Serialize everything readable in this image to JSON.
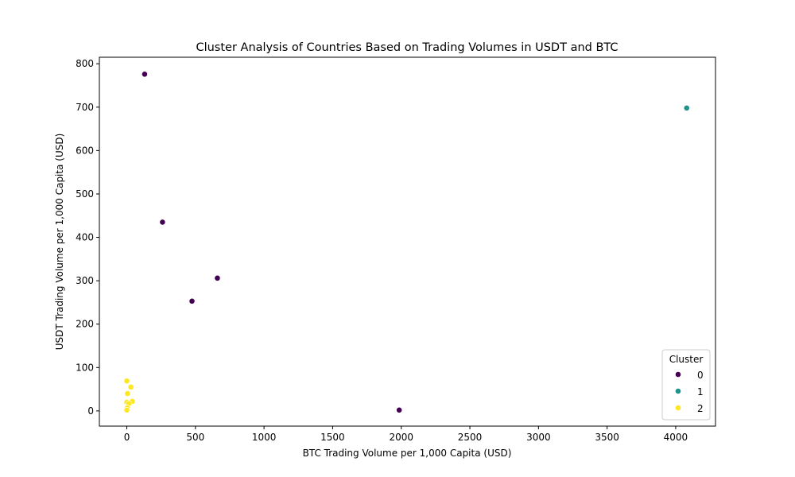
{
  "chart_data": {
    "type": "scatter",
    "title": "Cluster Analysis of Countries Based on Trading Volumes in USDT and BTC",
    "xlabel": "BTC Trading Volume per 1,000 Capita (USD)",
    "ylabel": "USDT Trading Volume per 1,000 Capita (USD)",
    "xlim": [
      -200,
      4290
    ],
    "ylim": [
      -35,
      815
    ],
    "xticks": [
      0,
      500,
      1000,
      1500,
      2000,
      2500,
      3000,
      3500,
      4000
    ],
    "yticks": [
      0,
      100,
      200,
      300,
      400,
      500,
      600,
      700,
      800
    ],
    "grid": false,
    "legend": {
      "title": "Cluster",
      "placement": "lower-right",
      "entries": [
        {
          "label": "0",
          "color": "#440154"
        },
        {
          "label": "1",
          "color": "#21918c"
        },
        {
          "label": "2",
          "color": "#fde725"
        }
      ]
    },
    "series": [
      {
        "name": "0",
        "color": "#440154",
        "points": [
          {
            "x": 130,
            "y": 776
          },
          {
            "x": 260,
            "y": 435
          },
          {
            "x": 660,
            "y": 306
          },
          {
            "x": 475,
            "y": 253
          },
          {
            "x": 1985,
            "y": 2
          }
        ]
      },
      {
        "name": "1",
        "color": "#21918c",
        "points": [
          {
            "x": 4080,
            "y": 698
          }
        ]
      },
      {
        "name": "2",
        "color": "#fde725",
        "points": [
          {
            "x": 0,
            "y": 69
          },
          {
            "x": 30,
            "y": 55
          },
          {
            "x": 5,
            "y": 40
          },
          {
            "x": 40,
            "y": 22
          },
          {
            "x": 0,
            "y": 20
          },
          {
            "x": 15,
            "y": 17
          },
          {
            "x": 3,
            "y": 7
          },
          {
            "x": 0,
            "y": 2
          }
        ]
      }
    ]
  }
}
